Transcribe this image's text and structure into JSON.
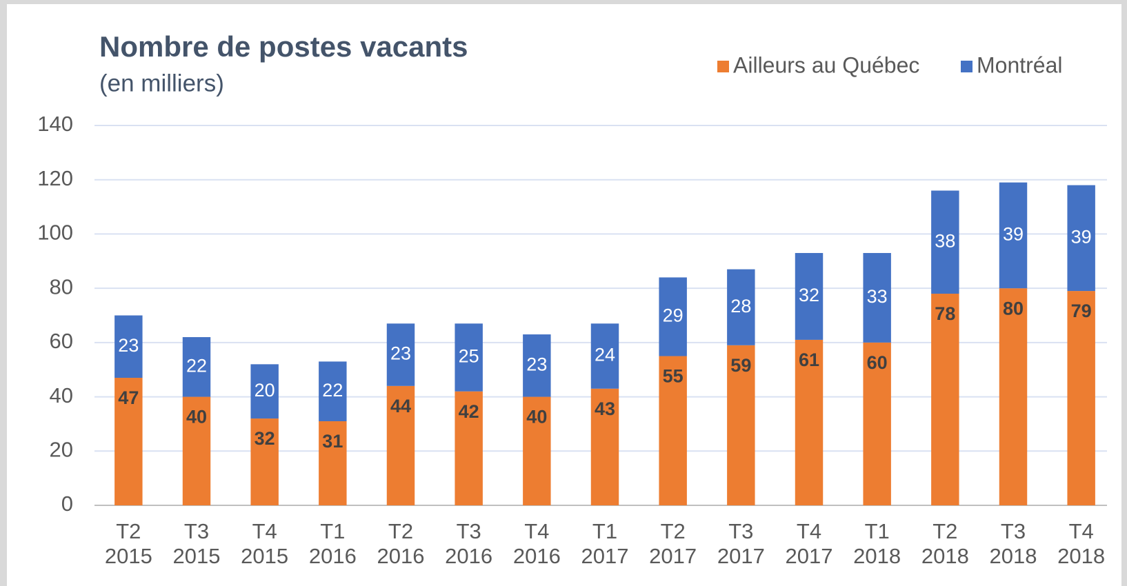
{
  "chart_data": {
    "type": "stacked_bar",
    "title": "Nombre de postes vacants",
    "subtitle": "(en milliers)",
    "categories": [
      [
        "T2",
        "2015"
      ],
      [
        "T3",
        "2015"
      ],
      [
        "T4",
        "2015"
      ],
      [
        "T1",
        "2016"
      ],
      [
        "T2",
        "2016"
      ],
      [
        "T3",
        "2016"
      ],
      [
        "T4",
        "2016"
      ],
      [
        "T1",
        "2017"
      ],
      [
        "T2",
        "2017"
      ],
      [
        "T3",
        "2017"
      ],
      [
        "T4",
        "2017"
      ],
      [
        "T1",
        "2018"
      ],
      [
        "T2",
        "2018"
      ],
      [
        "T3",
        "2018"
      ],
      [
        "T4",
        "2018"
      ]
    ],
    "series": [
      {
        "name": "Ailleurs au Québec",
        "color": "#ed7d31",
        "values": [
          47,
          40,
          32,
          31,
          44,
          42,
          40,
          43,
          55,
          59,
          61,
          60,
          78,
          80,
          79
        ]
      },
      {
        "name": "Montréal",
        "color": "#4472c4",
        "values": [
          23,
          22,
          20,
          22,
          23,
          25,
          23,
          24,
          29,
          28,
          32,
          33,
          38,
          39,
          39
        ]
      }
    ],
    "ylim": [
      0,
      140
    ],
    "yticks": [
      0,
      20,
      40,
      60,
      80,
      100,
      120,
      140
    ],
    "grid": true,
    "legend": "top-right"
  }
}
